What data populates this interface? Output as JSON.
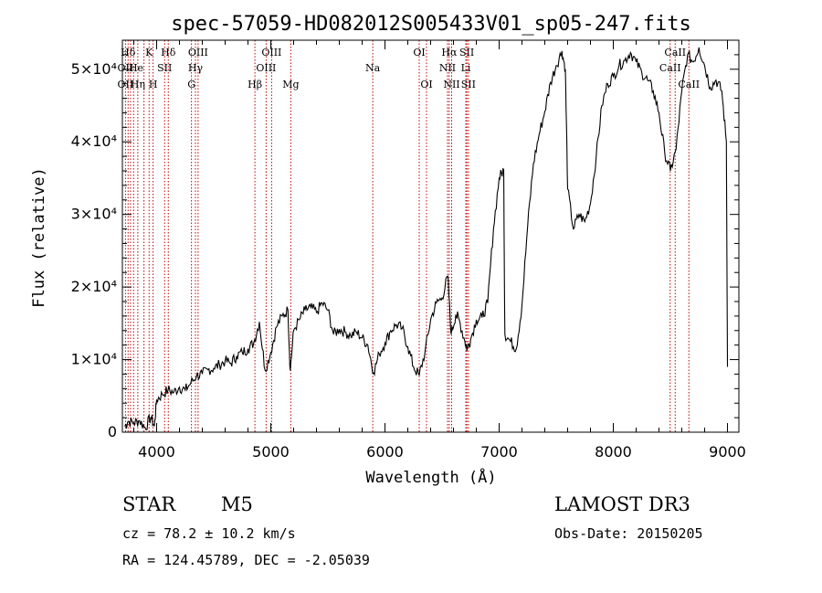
{
  "chart_data": {
    "type": "line",
    "title": "spec-57059-HD082012S005433V01_sp05-247.fits",
    "xlabel": "Wavelength (Å)",
    "ylabel": "Flux (relative)",
    "xlim": [
      3700,
      9100
    ],
    "ylim": [
      0,
      54000
    ],
    "xticks": [
      4000,
      5000,
      6000,
      7000,
      8000,
      9000
    ],
    "yticks": [
      {
        "value": 0,
        "label": "0"
      },
      {
        "value": 10000,
        "label": "1×10⁴"
      },
      {
        "value": 20000,
        "label": "2×10⁴"
      },
      {
        "value": 30000,
        "label": "3×10⁴"
      },
      {
        "value": 40000,
        "label": "4×10⁴"
      },
      {
        "value": 50000,
        "label": "5×10⁴"
      }
    ],
    "series": [
      {
        "name": "flux",
        "points": [
          [
            3720,
            800
          ],
          [
            3750,
            1500
          ],
          [
            3800,
            1300
          ],
          [
            3850,
            1600
          ],
          [
            3900,
            600
          ],
          [
            3950,
            2100
          ],
          [
            3980,
            800
          ],
          [
            4000,
            4500
          ],
          [
            4050,
            5200
          ],
          [
            4100,
            5800
          ],
          [
            4150,
            5500
          ],
          [
            4200,
            6200
          ],
          [
            4250,
            5800
          ],
          [
            4300,
            6800
          ],
          [
            4350,
            7800
          ],
          [
            4400,
            8000
          ],
          [
            4450,
            8600
          ],
          [
            4500,
            8800
          ],
          [
            4550,
            9300
          ],
          [
            4600,
            9800
          ],
          [
            4650,
            9500
          ],
          [
            4700,
            10500
          ],
          [
            4750,
            11000
          ],
          [
            4800,
            11500
          ],
          [
            4850,
            12300
          ],
          [
            4900,
            15200
          ],
          [
            4950,
            8500
          ],
          [
            5000,
            11000
          ],
          [
            5050,
            14500
          ],
          [
            5100,
            16000
          ],
          [
            5150,
            16800
          ],
          [
            5170,
            8500
          ],
          [
            5200,
            14000
          ],
          [
            5250,
            15500
          ],
          [
            5300,
            16800
          ],
          [
            5350,
            17200
          ],
          [
            5400,
            16500
          ],
          [
            5450,
            17800
          ],
          [
            5500,
            16800
          ],
          [
            5550,
            13500
          ],
          [
            5600,
            14200
          ],
          [
            5650,
            13800
          ],
          [
            5700,
            13300
          ],
          [
            5750,
            13800
          ],
          [
            5800,
            13000
          ],
          [
            5850,
            12000
          ],
          [
            5900,
            8200
          ],
          [
            5950,
            10800
          ],
          [
            6000,
            12300
          ],
          [
            6050,
            14000
          ],
          [
            6100,
            14800
          ],
          [
            6150,
            14300
          ],
          [
            6200,
            11800
          ],
          [
            6250,
            9000
          ],
          [
            6300,
            7800
          ],
          [
            6350,
            11000
          ],
          [
            6400,
            15500
          ],
          [
            6450,
            17800
          ],
          [
            6500,
            18500
          ],
          [
            6550,
            21500
          ],
          [
            6580,
            13500
          ],
          [
            6620,
            16200
          ],
          [
            6650,
            15500
          ],
          [
            6700,
            12500
          ],
          [
            6720,
            11500
          ],
          [
            6750,
            12800
          ],
          [
            6800,
            15500
          ],
          [
            6850,
            15800
          ],
          [
            6900,
            17800
          ],
          [
            6950,
            28000
          ],
          [
            7000,
            35000
          ],
          [
            7040,
            36200
          ],
          [
            7050,
            13500
          ],
          [
            7100,
            12500
          ],
          [
            7150,
            11500
          ],
          [
            7200,
            17500
          ],
          [
            7250,
            28500
          ],
          [
            7300,
            37000
          ],
          [
            7350,
            41000
          ],
          [
            7400,
            44200
          ],
          [
            7450,
            48200
          ],
          [
            7500,
            50500
          ],
          [
            7550,
            52500
          ],
          [
            7580,
            50000
          ],
          [
            7600,
            33500
          ],
          [
            7650,
            28000
          ],
          [
            7700,
            30000
          ],
          [
            7750,
            29000
          ],
          [
            7800,
            31500
          ],
          [
            7850,
            38000
          ],
          [
            7900,
            45000
          ],
          [
            7950,
            48000
          ],
          [
            8000,
            49000
          ],
          [
            8050,
            50500
          ],
          [
            8100,
            51200
          ],
          [
            8150,
            52300
          ],
          [
            8200,
            51000
          ],
          [
            8250,
            49500
          ],
          [
            8300,
            48500
          ],
          [
            8350,
            47000
          ],
          [
            8400,
            44000
          ],
          [
            8450,
            38500
          ],
          [
            8500,
            36000
          ],
          [
            8550,
            39000
          ],
          [
            8600,
            47000
          ],
          [
            8650,
            52000
          ],
          [
            8700,
            51000
          ],
          [
            8750,
            53000
          ],
          [
            8800,
            50500
          ],
          [
            8850,
            47500
          ],
          [
            8900,
            48500
          ],
          [
            8950,
            47000
          ],
          [
            8990,
            40000
          ],
          [
            9000,
            9000
          ]
        ]
      }
    ],
    "line_markers": [
      {
        "label": "Hδ",
        "wl": 3750,
        "row": 1
      },
      {
        "label": "OII",
        "wl": 3727,
        "row": 2
      },
      {
        "label": "OII",
        "wl": 3727,
        "row": 3
      },
      {
        "label": "He",
        "wl": 3820,
        "row": 2
      },
      {
        "label": "Hη",
        "wl": 3835,
        "row": 3
      },
      {
        "label": "K",
        "wl": 3934,
        "row": 1
      },
      {
        "label": "SII",
        "wl": 4070,
        "row": 2
      },
      {
        "label": "H",
        "wl": 3969,
        "row": 3
      },
      {
        "label": "Hδ",
        "wl": 4102,
        "row": 1
      },
      {
        "label": "OIII",
        "wl": 4363,
        "row": 1
      },
      {
        "label": "Hγ",
        "wl": 4340,
        "row": 2
      },
      {
        "label": "G",
        "wl": 4305,
        "row": 3
      },
      {
        "label": "OIII",
        "wl": 5007,
        "row": 1
      },
      {
        "label": "OIII",
        "wl": 4959,
        "row": 2
      },
      {
        "label": "Hβ",
        "wl": 4861,
        "row": 3
      },
      {
        "label": "Mg",
        "wl": 5175,
        "row": 3
      },
      {
        "label": "Na",
        "wl": 5893,
        "row": 2
      },
      {
        "label": "OI",
        "wl": 6300,
        "row": 1
      },
      {
        "label": "OI",
        "wl": 6364,
        "row": 3
      },
      {
        "label": "Hα",
        "wl": 6563,
        "row": 1
      },
      {
        "label": "NII",
        "wl": 6548,
        "row": 2
      },
      {
        "label": "NII",
        "wl": 6584,
        "row": 3
      },
      {
        "label": "SII",
        "wl": 6717,
        "row": 1
      },
      {
        "label": "Li",
        "wl": 6708,
        "row": 2
      },
      {
        "label": "SII",
        "wl": 6731,
        "row": 3
      },
      {
        "label": "CaII",
        "wl": 8542,
        "row": 1
      },
      {
        "label": "CaII",
        "wl": 8498,
        "row": 2
      },
      {
        "label": "CaII",
        "wl": 8662,
        "row": 3
      }
    ],
    "marker_wavelengths": [
      3727,
      3750,
      3771,
      3798,
      3835,
      3889,
      3934,
      3969,
      4070,
      4102,
      4305,
      4340,
      4363,
      4861,
      4959,
      5007,
      5175,
      5893,
      6300,
      6364,
      6548,
      6563,
      6584,
      6708,
      6717,
      6731,
      8498,
      8542,
      8662
    ]
  },
  "info": {
    "object_class": "STAR",
    "subclass": "M5",
    "survey": "LAMOST DR3",
    "cz": "cz = 78.2 ± 10.2 km/s",
    "obs_date": "Obs-Date: 20150205",
    "coords": "RA = 124.45789, DEC =  -2.05039"
  }
}
